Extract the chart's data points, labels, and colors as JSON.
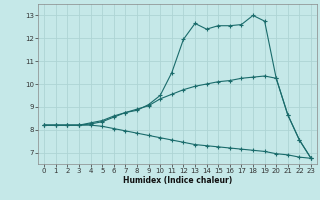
{
  "xlabel": "Humidex (Indice chaleur)",
  "xlim": [
    -0.5,
    23.5
  ],
  "ylim": [
    6.5,
    13.5
  ],
  "xticks": [
    0,
    1,
    2,
    3,
    4,
    5,
    6,
    7,
    8,
    9,
    10,
    11,
    12,
    13,
    14,
    15,
    16,
    17,
    18,
    19,
    20,
    21,
    22,
    23
  ],
  "yticks": [
    7,
    8,
    9,
    10,
    11,
    12,
    13
  ],
  "background_color": "#c5e8e8",
  "grid_color": "#aed4d4",
  "line_color": "#1a6b6b",
  "line1_x": [
    0,
    1,
    2,
    3,
    4,
    5,
    6,
    7,
    8,
    9,
    10,
    11,
    12,
    13,
    14,
    15,
    16,
    17,
    18,
    19,
    20,
    21,
    22,
    23
  ],
  "line1_y": [
    8.2,
    8.2,
    8.2,
    8.2,
    8.25,
    8.35,
    8.55,
    8.75,
    8.85,
    9.1,
    9.5,
    10.5,
    11.95,
    12.65,
    12.4,
    12.55,
    12.55,
    12.6,
    13.0,
    12.75,
    10.25,
    8.65,
    7.55,
    6.75
  ],
  "line2_x": [
    0,
    1,
    2,
    3,
    4,
    5,
    6,
    7,
    8,
    9,
    10,
    11,
    12,
    13,
    14,
    15,
    16,
    17,
    18,
    19,
    20,
    21,
    22,
    23
  ],
  "line2_y": [
    8.2,
    8.2,
    8.2,
    8.2,
    8.3,
    8.4,
    8.6,
    8.75,
    8.9,
    9.05,
    9.35,
    9.55,
    9.75,
    9.9,
    10.0,
    10.1,
    10.15,
    10.25,
    10.3,
    10.35,
    10.25,
    8.65,
    7.55,
    6.75
  ],
  "line3_x": [
    0,
    1,
    2,
    3,
    4,
    5,
    6,
    7,
    8,
    9,
    10,
    11,
    12,
    13,
    14,
    15,
    16,
    17,
    18,
    19,
    20,
    21,
    22,
    23
  ],
  "line3_y": [
    8.2,
    8.2,
    8.2,
    8.2,
    8.2,
    8.15,
    8.05,
    7.95,
    7.85,
    7.75,
    7.65,
    7.55,
    7.45,
    7.35,
    7.3,
    7.25,
    7.2,
    7.15,
    7.1,
    7.05,
    6.95,
    6.9,
    6.8,
    6.75
  ]
}
